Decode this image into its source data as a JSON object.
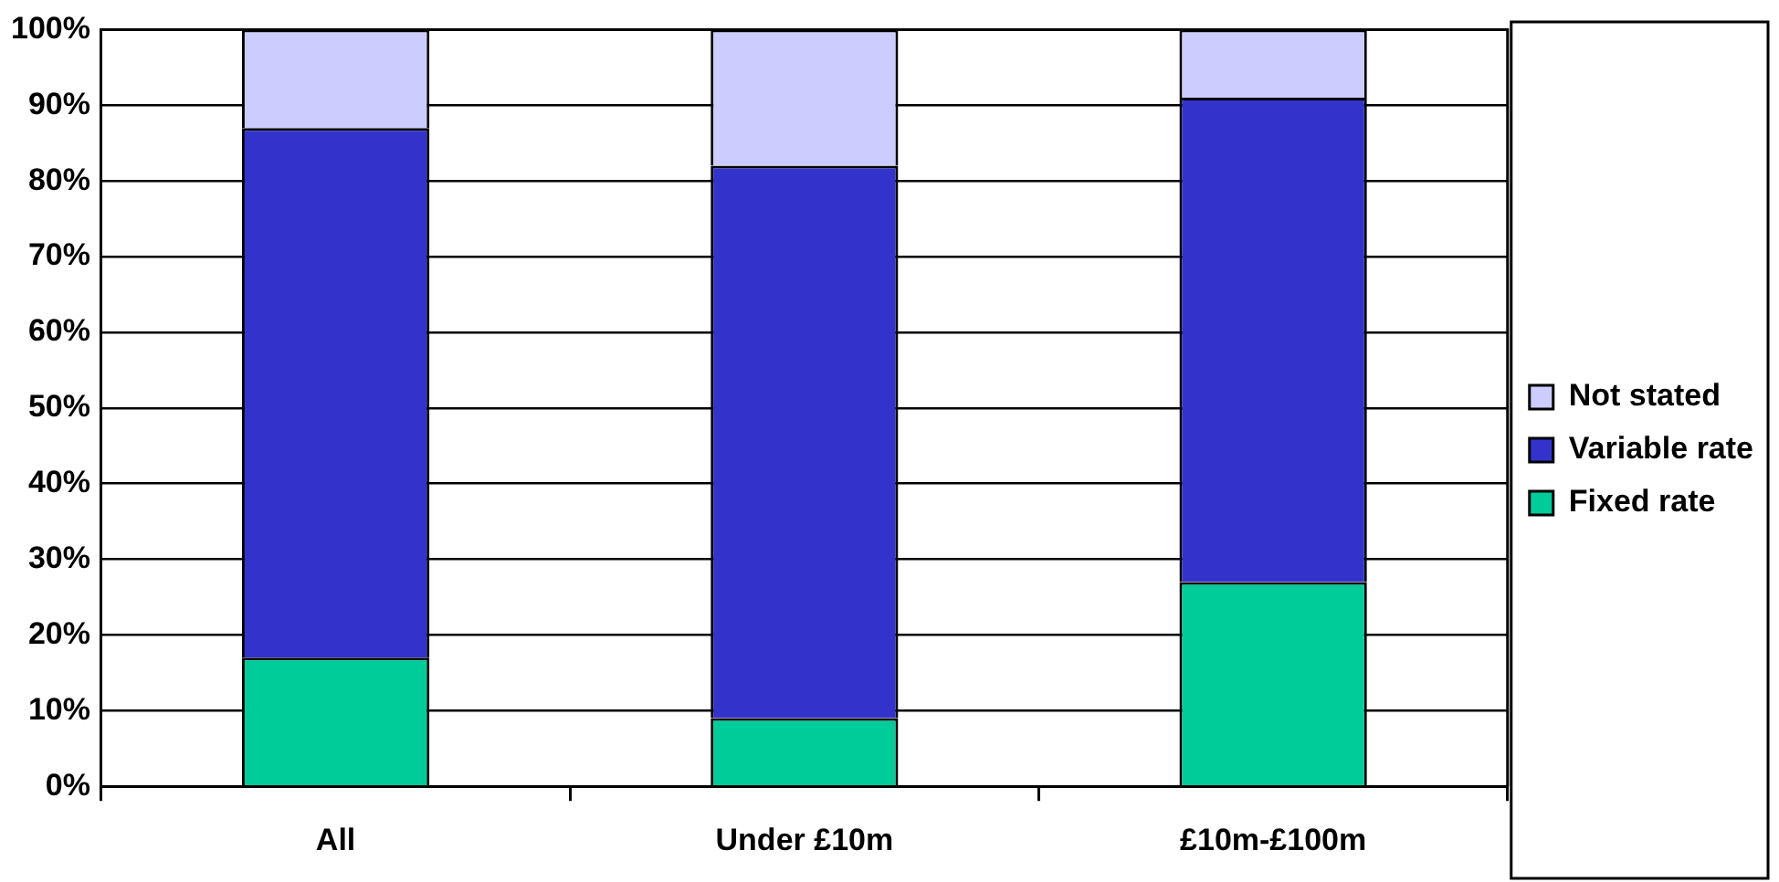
{
  "chart_data": {
    "type": "bar",
    "stacked": true,
    "categories": [
      "All",
      "Under £10m",
      "£10m-£100m"
    ],
    "series": [
      {
        "name": "Fixed rate",
        "color": "#00cc99",
        "values": [
          17,
          9,
          27
        ]
      },
      {
        "name": "Variable rate",
        "color": "#3333cc",
        "values": [
          70,
          73,
          64
        ]
      },
      {
        "name": "Not stated",
        "color": "#ccccff",
        "values": [
          13,
          18,
          9
        ]
      }
    ],
    "ylim": [
      0,
      100
    ],
    "yticks": [
      {
        "value": 0,
        "label": "0%"
      },
      {
        "value": 10,
        "label": "10%"
      },
      {
        "value": 20,
        "label": "20%"
      },
      {
        "value": 30,
        "label": "30%"
      },
      {
        "value": 40,
        "label": "40%"
      },
      {
        "value": 50,
        "label": "50%"
      },
      {
        "value": 60,
        "label": "60%"
      },
      {
        "value": 70,
        "label": "70%"
      },
      {
        "value": 80,
        "label": "80%"
      },
      {
        "value": 90,
        "label": "90%"
      },
      {
        "value": 100,
        "label": "100%"
      }
    ],
    "grid": "y",
    "legend": "right"
  }
}
